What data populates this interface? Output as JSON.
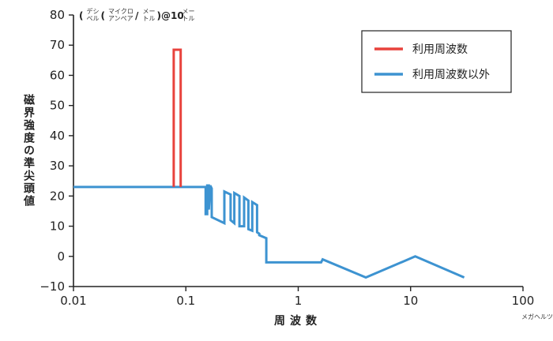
{
  "chart_data": {
    "type": "line",
    "x_scale": "log",
    "xlim": [
      0.01,
      100
    ],
    "ylim": [
      -10,
      80
    ],
    "x_ticks": [
      0.01,
      0.1,
      1,
      10,
      100
    ],
    "x_tick_labels": [
      "0.01",
      "0.1",
      "1",
      "10",
      "100"
    ],
    "y_ticks": [
      -10,
      0,
      10,
      20,
      30,
      40,
      50,
      60,
      70,
      80
    ],
    "y_tick_labels": [
      "−10",
      "0",
      "10",
      "20",
      "30",
      "40",
      "50",
      "60",
      "70",
      "80"
    ],
    "ylabel": "磁界強度の準尖頭値",
    "y_unit": "(デシベル(マイクロアンペア/メートル)@10メートル)",
    "y_unit_parts": [
      {
        "base": "(",
        "ruby": ""
      },
      {
        "base": "",
        "ruby": "デシベル"
      },
      {
        "base": "(",
        "ruby": ""
      },
      {
        "base": "",
        "ruby": "マイクロアンペア"
      },
      {
        "base": "/",
        "ruby": ""
      },
      {
        "base": "",
        "ruby": "メートル"
      },
      {
        "base": ")@10",
        "ruby": ""
      },
      {
        "base": "",
        "ruby": "メートル"
      }
    ],
    "xlabel": "周波数",
    "x_unit_ruby": "メガヘルツ",
    "legend_position": "top-right",
    "grid": false,
    "series": [
      {
        "name": "利用周波数",
        "color": "#e8423c",
        "points": [
          [
            0.078,
            23
          ],
          [
            0.078,
            68.5
          ],
          [
            0.09,
            68.5
          ],
          [
            0.09,
            23
          ]
        ]
      },
      {
        "name": "利用周波数以外",
        "color": "#3d93d1",
        "points": [
          [
            0.01,
            23
          ],
          [
            0.078,
            23
          ],
          [
            0.09,
            23
          ],
          [
            0.15,
            23
          ],
          [
            0.15,
            14
          ],
          [
            0.155,
            14
          ],
          [
            0.155,
            23.5
          ],
          [
            0.16,
            23.5
          ],
          [
            0.16,
            15.5
          ],
          [
            0.165,
            23.5
          ],
          [
            0.17,
            22.5
          ],
          [
            0.17,
            13
          ],
          [
            0.22,
            11
          ],
          [
            0.22,
            21.5
          ],
          [
            0.25,
            20.5
          ],
          [
            0.25,
            12
          ],
          [
            0.27,
            11
          ],
          [
            0.27,
            21
          ],
          [
            0.3,
            20
          ],
          [
            0.3,
            10
          ],
          [
            0.33,
            10
          ],
          [
            0.33,
            19.5
          ],
          [
            0.36,
            18.5
          ],
          [
            0.36,
            9
          ],
          [
            0.39,
            8.5
          ],
          [
            0.39,
            18
          ],
          [
            0.43,
            17
          ],
          [
            0.43,
            8
          ],
          [
            0.45,
            7.5
          ],
          [
            0.45,
            7
          ],
          [
            0.52,
            6
          ],
          [
            0.52,
            -2
          ],
          [
            1.6,
            -2
          ],
          [
            1.65,
            -1
          ],
          [
            4,
            -7
          ],
          [
            11,
            0
          ],
          [
            30,
            -7
          ]
        ]
      }
    ]
  }
}
